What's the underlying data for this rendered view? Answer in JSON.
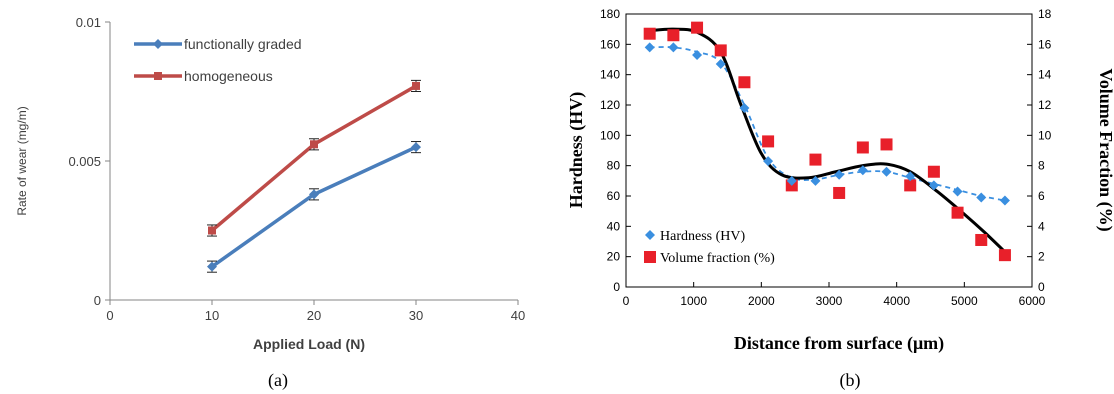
{
  "chart_data": [
    {
      "type": "line",
      "panel_label": "(a)",
      "xlabel": "Applied Load (N)",
      "ylabel": "Rate of wear (mg/m)",
      "xlim": [
        0,
        40
      ],
      "ylim": [
        0,
        0.01
      ],
      "x_ticks": [
        "0",
        "10",
        "20",
        "30",
        "40"
      ],
      "y_ticks": [
        "0",
        "0.005",
        "0.01"
      ],
      "grid": false,
      "legend_position": "top-left",
      "series": [
        {
          "name": "functionally graded",
          "color": "#4a7ebb",
          "marker": "diamond",
          "x": [
            10,
            20,
            30
          ],
          "y": [
            0.0012,
            0.0038,
            0.0055
          ],
          "err": [
            0.0002,
            0.0002,
            0.0002
          ]
        },
        {
          "name": "homogeneous",
          "color": "#be4b48",
          "marker": "square",
          "x": [
            10,
            20,
            30
          ],
          "y": [
            0.0025,
            0.0056,
            0.0077
          ],
          "err": [
            0.0002,
            0.0002,
            0.0002
          ]
        }
      ]
    },
    {
      "type": "scatter",
      "panel_label": "(b)",
      "xlabel": "Distance from surface (μm)",
      "ylabel": "Hardness (HV)",
      "y2label": "Volume Fraction (%)",
      "xlim": [
        0,
        6000
      ],
      "ylim": [
        0,
        180
      ],
      "y2lim": [
        0,
        18
      ],
      "x_ticks": [
        "0",
        "1000",
        "2000",
        "3000",
        "4000",
        "5000",
        "6000"
      ],
      "y_ticks": [
        "0",
        "20",
        "40",
        "60",
        "80",
        "100",
        "120",
        "140",
        "160",
        "180"
      ],
      "y2_ticks": [
        "0",
        "2",
        "4",
        "6",
        "8",
        "10",
        "12",
        "14",
        "16",
        "18"
      ],
      "grid": false,
      "legend_position": "bottom-left",
      "series": [
        {
          "name": "Hardness (HV)",
          "axis": "left",
          "color": "#3a8fe0",
          "marker": "diamond",
          "trend": "dashed",
          "x": [
            350,
            700,
            1050,
            1400,
            1750,
            2100,
            2450,
            2800,
            3150,
            3500,
            3850,
            4200,
            4550,
            4900,
            5250,
            5600
          ],
          "y": [
            158,
            158,
            153,
            147,
            118,
            83,
            70,
            70,
            74,
            77,
            76,
            73,
            67,
            63,
            59,
            57
          ]
        },
        {
          "name": "Volume fraction (%)",
          "axis": "right",
          "color": "#e8202a",
          "marker": "square",
          "trend": "solid",
          "x": [
            350,
            700,
            1050,
            1400,
            1750,
            2100,
            2450,
            2800,
            3150,
            3500,
            3850,
            4200,
            4550,
            4900,
            5250,
            5600
          ],
          "y": [
            16.7,
            16.6,
            17.1,
            15.6,
            13.5,
            9.6,
            6.7,
            8.4,
            6.2,
            9.2,
            9.4,
            6.7,
            7.6,
            4.9,
            3.1,
            2.1
          ]
        }
      ],
      "trendlines": {
        "hardness_x": [
          350,
          700,
          1050,
          1400,
          1750,
          2100,
          2450,
          2800,
          3150,
          3500,
          3850,
          4200,
          4550,
          4900,
          5250,
          5600
        ],
        "hardness_y": [
          158,
          158,
          155,
          148,
          120,
          85,
          72,
          71,
          74,
          76,
          76,
          72,
          68,
          64,
          60,
          57
        ],
        "volume_x": [
          350,
          700,
          1050,
          1400,
          1700,
          2000,
          2300,
          2700,
          3100,
          3500,
          3850,
          4200,
          4600,
          5000,
          5300,
          5650
        ],
        "volume_y": [
          16.9,
          17.0,
          16.8,
          15.5,
          12.0,
          8.8,
          7.4,
          7.2,
          7.6,
          8.0,
          8.1,
          7.6,
          6.3,
          4.8,
          3.6,
          2.1
        ]
      }
    }
  ]
}
